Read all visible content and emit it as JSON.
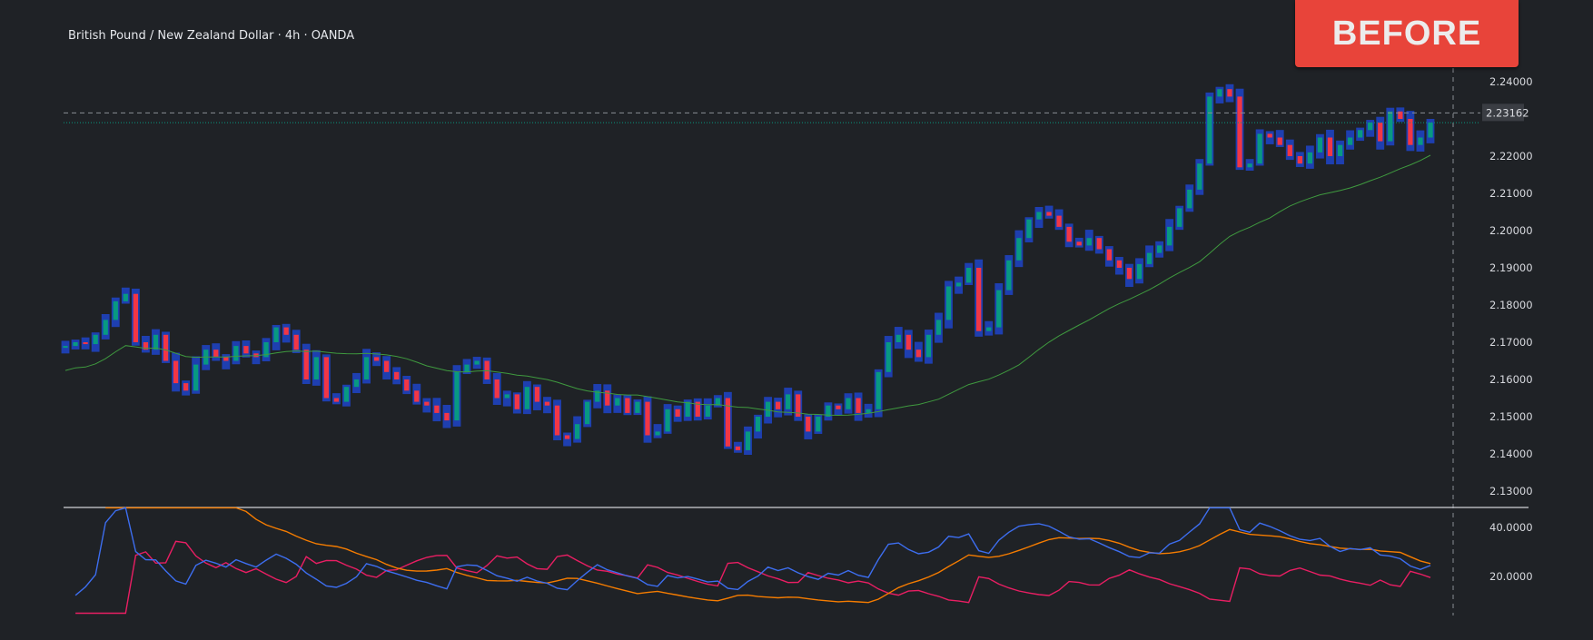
{
  "header": {
    "title": "British Pound / New Zealand Dollar · 4h · OANDA"
  },
  "badge": {
    "label": "BEFORE"
  },
  "colors": {
    "background": "#1f2226",
    "up": "#089981",
    "down": "#f23645",
    "range": "#1e3fb0",
    "ma": "#3f9a3f",
    "plus_di": "#3d6ef0",
    "minus_di": "#e91e63",
    "adx": "#f57c00",
    "badge": "#e8443a"
  },
  "chart_data": [
    {
      "type": "candlestick",
      "title": "British Pound / New Zealand Dollar · 4h · OANDA",
      "ylim": [
        2.125,
        2.25
      ],
      "y_ticks": [
        "2.24000",
        "2.22000",
        "2.21000",
        "2.20000",
        "2.19000",
        "2.18000",
        "2.17000",
        "2.16000",
        "2.15000",
        "2.14000",
        "2.13000"
      ],
      "y_tick_values": [
        2.24,
        2.22,
        2.21,
        2.2,
        2.19,
        2.18,
        2.17,
        2.16,
        2.15,
        2.14,
        2.13
      ],
      "last_price_label": "2.23162",
      "last_price": 2.23162,
      "overlay": "moving average",
      "closes": [
        2.169,
        2.17,
        2.1695,
        2.172,
        2.176,
        2.181,
        2.183,
        2.17,
        2.168,
        2.172,
        2.165,
        2.159,
        2.157,
        2.164,
        2.168,
        2.166,
        2.165,
        2.169,
        2.167,
        2.166,
        2.17,
        2.174,
        2.172,
        2.168,
        2.16,
        2.166,
        2.155,
        2.154,
        2.158,
        2.16,
        2.166,
        2.165,
        2.162,
        2.16,
        2.157,
        2.154,
        2.153,
        2.151,
        2.149,
        2.162,
        2.164,
        2.165,
        2.16,
        2.155,
        2.156,
        2.152,
        2.158,
        2.154,
        2.153,
        2.145,
        2.144,
        2.148,
        2.154,
        2.157,
        2.153,
        2.155,
        2.151,
        2.154,
        2.145,
        2.146,
        2.152,
        2.15,
        2.154,
        2.15,
        2.153,
        2.155,
        2.142,
        2.141,
        2.146,
        2.15,
        2.154,
        2.152,
        2.156,
        2.15,
        2.146,
        2.15,
        2.153,
        2.152,
        2.155,
        2.151,
        2.152,
        2.162,
        2.17,
        2.172,
        2.168,
        2.166,
        2.172,
        2.176,
        2.185,
        2.186,
        2.19,
        2.173,
        2.174,
        2.184,
        2.192,
        2.198,
        2.203,
        2.205,
        2.204,
        2.201,
        2.197,
        2.196,
        2.198,
        2.195,
        2.192,
        2.19,
        2.187,
        2.191,
        2.194,
        2.196,
        2.201,
        2.206,
        2.211,
        2.218,
        2.236,
        2.238,
        2.236,
        2.217,
        2.218,
        2.226,
        2.225,
        2.223,
        2.22,
        2.218,
        2.221,
        2.225,
        2.22,
        2.223,
        2.225,
        2.227,
        2.229,
        2.224,
        2.232,
        2.23,
        2.223,
        2.225,
        2.229
      ]
    },
    {
      "type": "line",
      "indicator": "DMI",
      "ylim": [
        5,
        48
      ],
      "y_ticks": [
        "40.0000",
        "20.0000"
      ],
      "y_tick_values": [
        40,
        20
      ]
    }
  ]
}
